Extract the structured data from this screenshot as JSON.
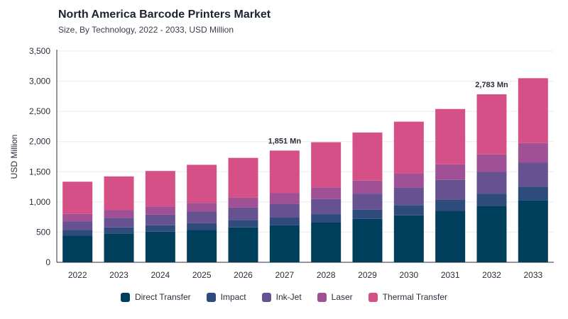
{
  "title": "North America Barcode Printers Market",
  "subtitle": "Size, By Technology, 2022 - 2033, USD Million",
  "chart_data": {
    "type": "bar",
    "stacked": true,
    "categories": [
      "2022",
      "2023",
      "2024",
      "2025",
      "2026",
      "2027",
      "2028",
      "2029",
      "2030",
      "2031",
      "2032",
      "2033"
    ],
    "series": [
      {
        "name": "Direct Transfer",
        "color": "#003f5c",
        "values": [
          440,
          478,
          508,
          535,
          578,
          612,
          658,
          718,
          778,
          852,
          938,
          1030
        ]
      },
      {
        "name": "Impact",
        "color": "#2f4b7c",
        "values": [
          95,
          100,
          105,
          115,
          122,
          128,
          140,
          155,
          170,
          182,
          200,
          225
        ]
      },
      {
        "name": "Ink-Jet",
        "color": "#665191",
        "values": [
          145,
          160,
          175,
          190,
          205,
          230,
          250,
          265,
          290,
          330,
          360,
          395
        ]
      },
      {
        "name": "Laser",
        "color": "#a05195",
        "values": [
          120,
          125,
          135,
          145,
          165,
          175,
          190,
          215,
          235,
          260,
          290,
          325
        ]
      },
      {
        "name": "Thermal Transfer",
        "color": "#d45087",
        "values": [
          535,
          560,
          590,
          630,
          660,
          706,
          752,
          797,
          857,
          916,
          995,
          1075
        ]
      }
    ],
    "ylabel": "USD Million",
    "ylim": [
      0,
      3500
    ],
    "yticks": [
      0,
      500,
      1000,
      1500,
      2000,
      2500,
      3000,
      3500
    ],
    "ytick_labels": [
      "0",
      "500",
      "1,000",
      "1,500",
      "2,000",
      "2,500",
      "3,000",
      "3,500"
    ],
    "grid": true,
    "legend_position": "bottom",
    "annotations": [
      {
        "category": "2027",
        "text": "1,851 Mn"
      },
      {
        "category": "2032",
        "text": "2,783 Mn"
      }
    ]
  }
}
